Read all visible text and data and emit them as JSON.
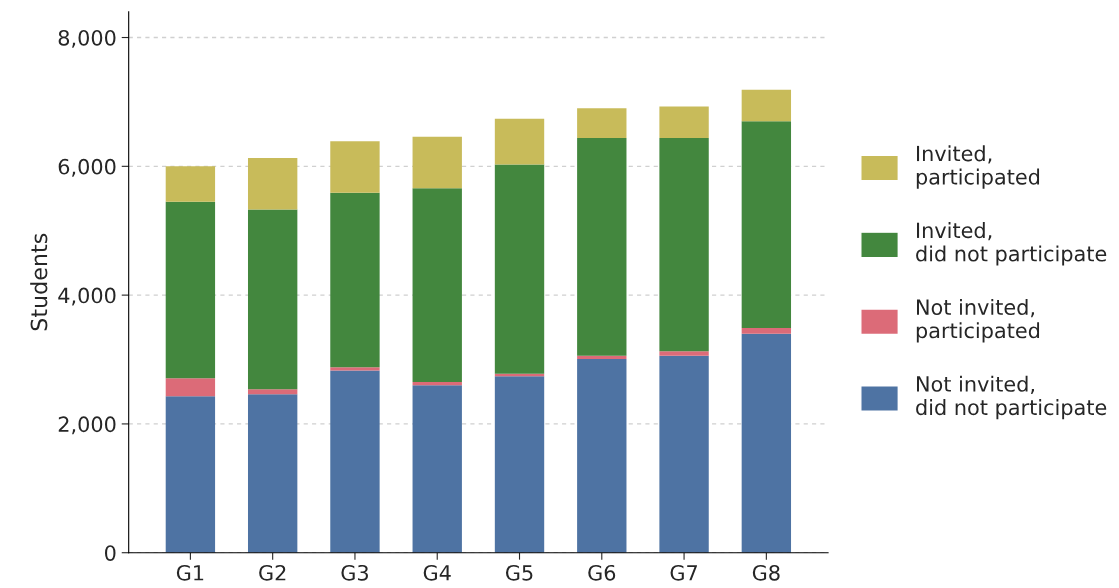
{
  "chart_data": {
    "type": "bar",
    "stacked": true,
    "ylabel": "Students",
    "categories": [
      "G1",
      "G2",
      "G3",
      "G4",
      "G5",
      "G6",
      "G7",
      "G8"
    ],
    "series": [
      {
        "name": "Not invited,\ndid not participate",
        "color": "#4e73a3",
        "values": [
          2430,
          2460,
          2830,
          2600,
          2740,
          3010,
          3060,
          3400
        ]
      },
      {
        "name": "Not invited,\nparticipated",
        "color": "#dc6b78",
        "values": [
          280,
          80,
          50,
          50,
          40,
          50,
          70,
          90
        ]
      },
      {
        "name": "Invited,\ndid not participate",
        "color": "#43873e",
        "values": [
          2740,
          2790,
          2710,
          3010,
          3250,
          3380,
          3310,
          3210
        ]
      },
      {
        "name": "Invited,\nparticipated",
        "color": "#c8bb5a",
        "values": [
          550,
          800,
          800,
          800,
          710,
          460,
          490,
          490
        ]
      }
    ],
    "ylim": [
      0,
      8400
    ],
    "yticks": [
      {
        "value": 0,
        "label": "0"
      },
      {
        "value": 2000,
        "label": "2,000"
      },
      {
        "value": 4000,
        "label": "4,000"
      },
      {
        "value": 6000,
        "label": "6,000"
      },
      {
        "value": 8000,
        "label": "8,000"
      }
    ],
    "grid": "y",
    "legend": "right"
  }
}
